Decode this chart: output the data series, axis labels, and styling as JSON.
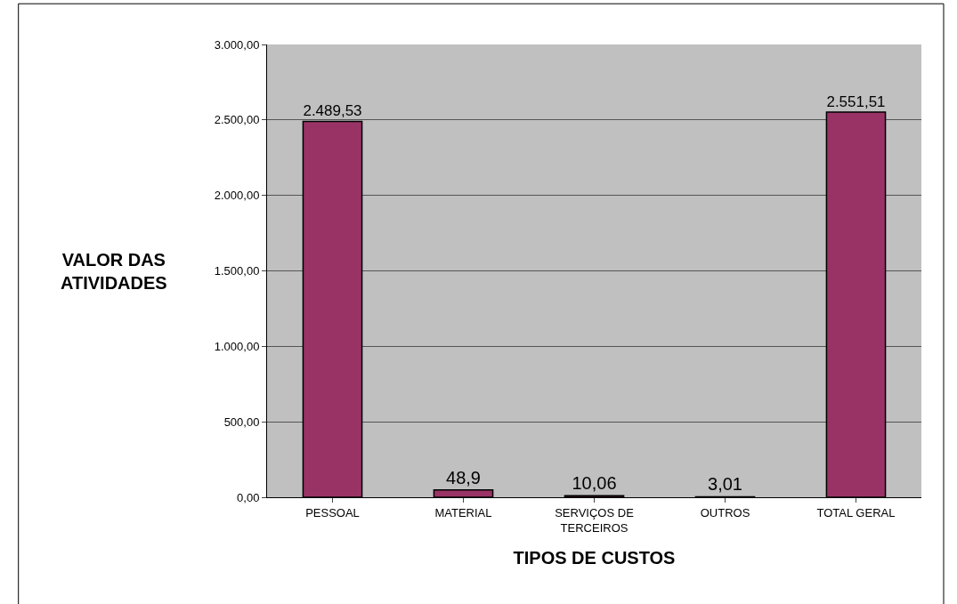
{
  "chart_data": {
    "type": "bar",
    "xlabel": "TIPOS DE CUSTOS",
    "ylabel": "VALOR DAS ATIVIDADES",
    "categories": [
      "PESSOAL",
      "MATERIAL",
      "SERVIÇOS DE TERCEIROS",
      "OUTROS",
      "TOTAL GERAL"
    ],
    "values": [
      2489.53,
      48.9,
      10.06,
      3.01,
      2551.51
    ],
    "value_labels": [
      "2.489,53",
      "48,9",
      "10,06",
      "3,01",
      "2.551,51"
    ],
    "color": "#993366",
    "ylim": [
      0,
      3000
    ],
    "yticks": [
      {
        "value": 0,
        "label": "0,00"
      },
      {
        "value": 500,
        "label": "500,00"
      },
      {
        "value": 1000,
        "label": "1.000,00"
      },
      {
        "value": 1500,
        "label": "1.500,00"
      },
      {
        "value": 2000,
        "label": "2.000,00"
      },
      {
        "value": 2500,
        "label": "2.500,00"
      },
      {
        "value": 3000,
        "label": "3.000,00"
      }
    ],
    "grid": "y",
    "legend": false
  }
}
